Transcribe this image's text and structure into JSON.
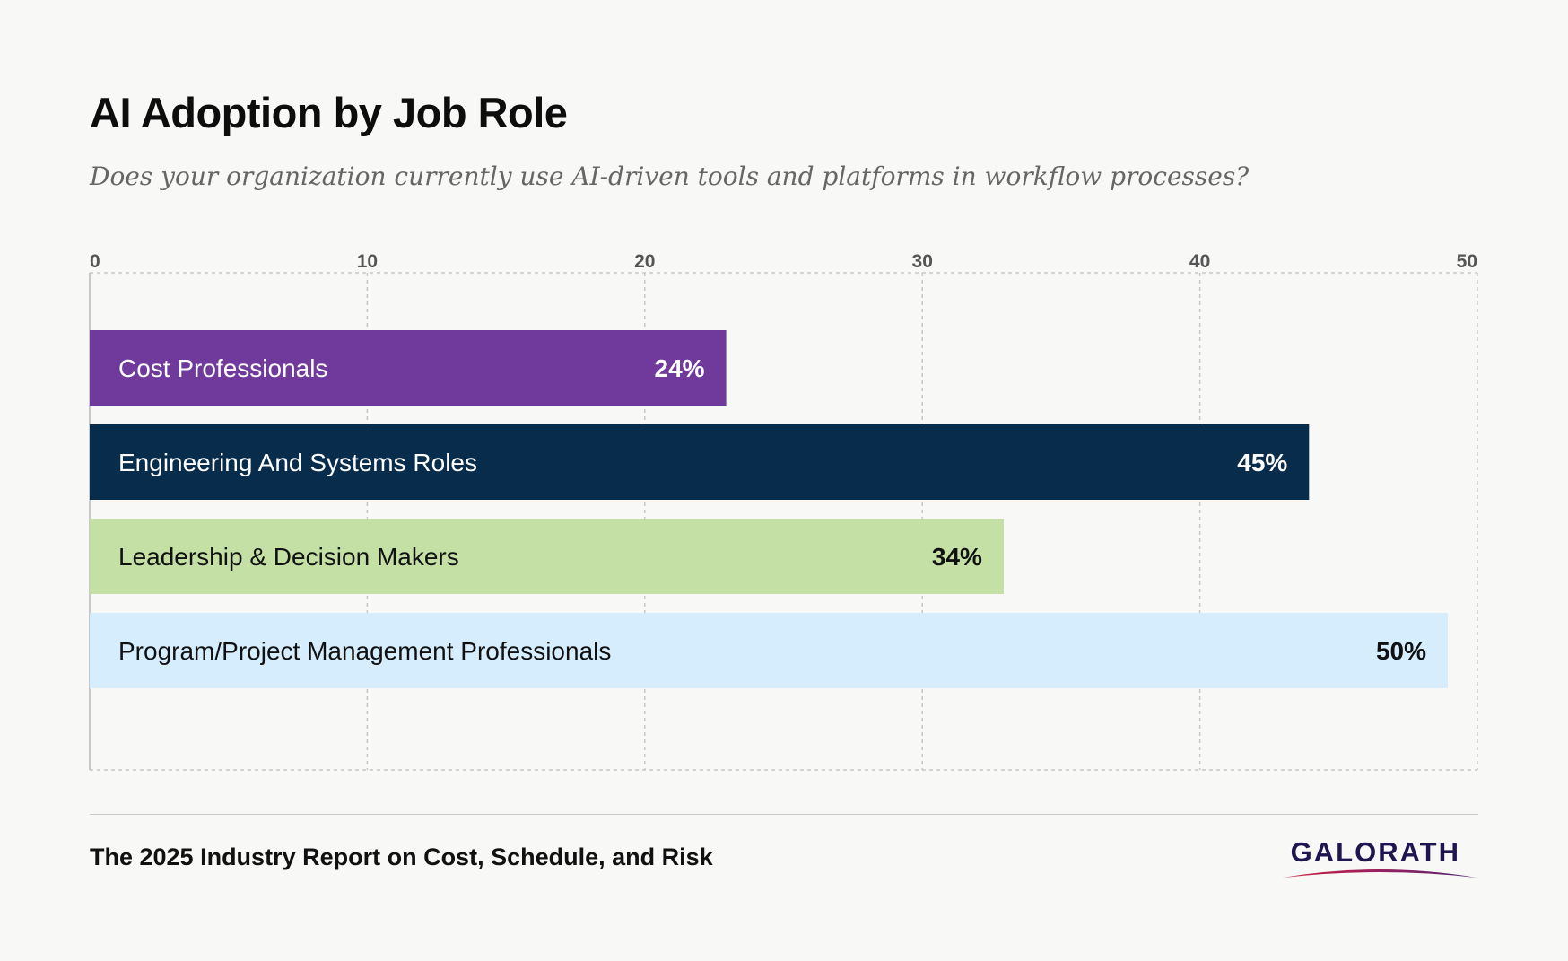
{
  "chart_data": {
    "type": "bar",
    "orientation": "horizontal",
    "title": "AI Adoption by Job Role",
    "subtitle": "Does your organization currently use AI-driven tools and platforms in workflow processes?",
    "xlim": [
      0,
      50
    ],
    "ticks": [
      "0",
      "10",
      "20",
      "30",
      "40",
      "50"
    ],
    "grid": true,
    "categories": [
      "Cost Professionals",
      "Engineering And Systems Roles",
      "Leadership & Decision Makers",
      "Program/Project Management Professionals"
    ],
    "values": [
      24,
      45,
      34,
      50
    ],
    "value_labels": [
      "24%",
      "45%",
      "34%",
      "50%"
    ],
    "colors": [
      "#6f3a9b",
      "#082c4c",
      "#c4e0a4",
      "#d6edfd"
    ],
    "label_colors": [
      "#ffffff",
      "#ffffff",
      "#111111",
      "#111111"
    ]
  },
  "footer": {
    "text": "The 2025 Industry Report on Cost, Schedule, and Risk",
    "logo_text": "GALORATH"
  }
}
